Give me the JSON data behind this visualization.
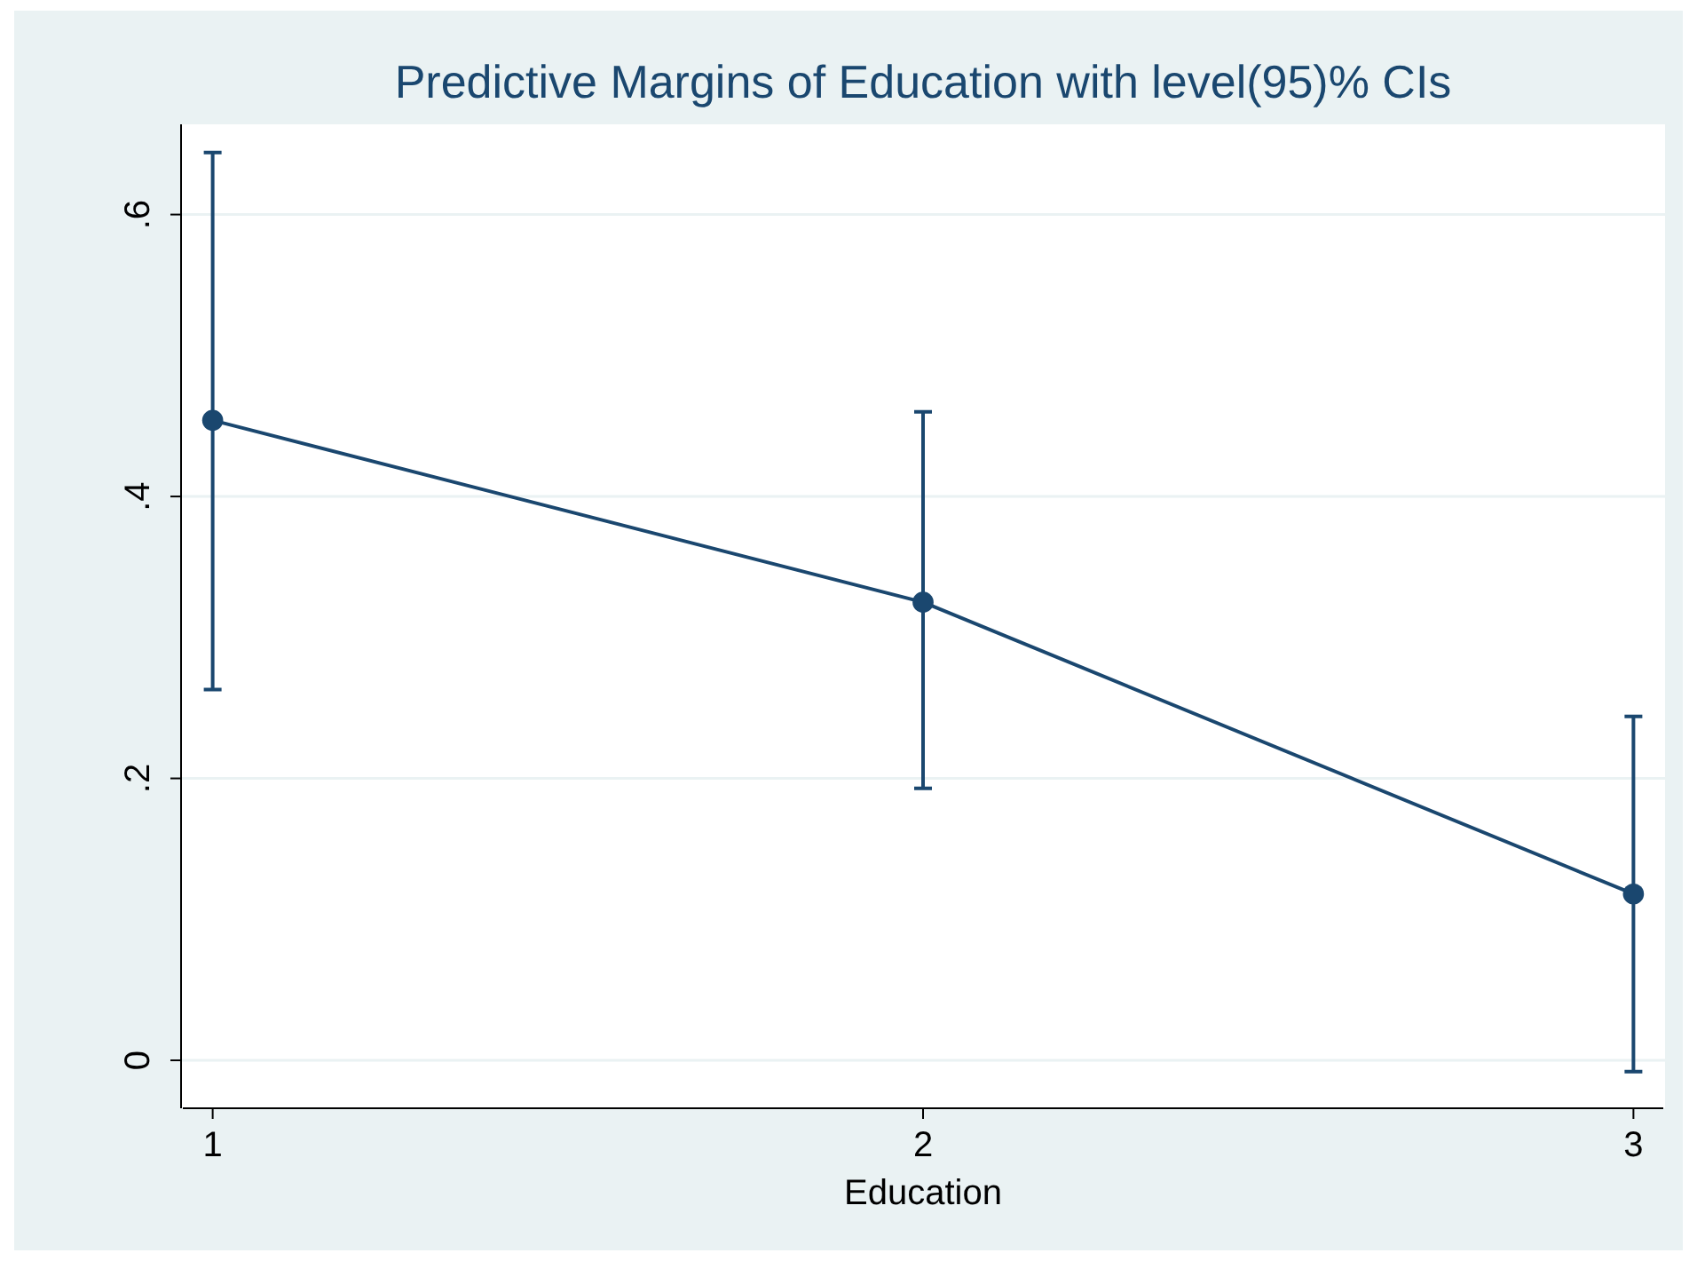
{
  "chart_data": {
    "type": "line",
    "title": "Predictive Margins of Education with level(95)% CIs",
    "xlabel": "Education",
    "x": [
      1,
      2,
      3
    ],
    "series": [
      {
        "color": "#1a476f",
        "values": [
          0.454,
          0.325,
          0.118
        ],
        "errors": [
          [
            0.263,
            0.644
          ],
          [
            0.193,
            0.46
          ],
          [
            -0.008,
            0.244
          ]
        ]
      }
    ],
    "xlim": [
      0.958,
      3.042
    ],
    "xticks": [
      1,
      2,
      3
    ],
    "ylim": [
      -0.034,
      0.664
    ],
    "yticks": [
      {
        "value": 0,
        "label": "0"
      },
      {
        "value": 0.2,
        "label": ".2"
      },
      {
        "value": 0.4,
        "label": ".4"
      },
      {
        "value": 0.6,
        "label": ".6"
      }
    ],
    "grid": "y",
    "marker": "circle",
    "line_style": "solid"
  }
}
